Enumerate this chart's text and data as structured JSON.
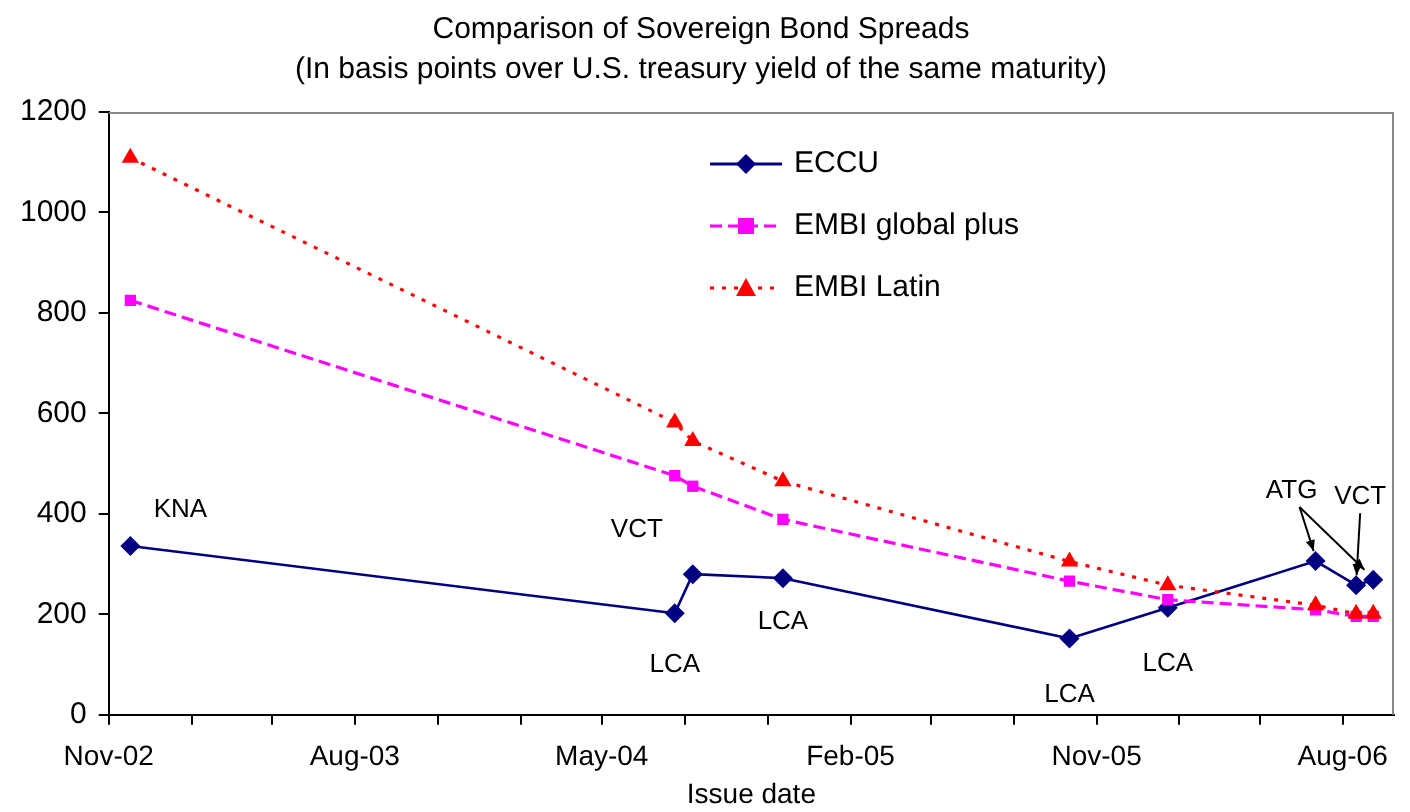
{
  "chart_data": {
    "type": "line",
    "title": "Comparison of Sovereign Bond Spreads",
    "subtitle": "(In basis points over U.S. treasury yield of the same maturity)",
    "xlabel": "Issue date",
    "x": [
      "2002-11-25",
      "2004-07-21",
      "2004-08-10",
      "2004-11-18",
      "2005-10-02",
      "2006-01-19",
      "2006-07-02",
      "2006-08-16",
      "2006-09-04"
    ],
    "series": [
      {
        "name": "ECCU",
        "color": "#000080",
        "marker": "diamond",
        "line_style": "solid",
        "values": [
          336,
          202,
          280,
          272,
          152,
          213,
          306,
          258,
          269
        ]
      },
      {
        "name": "EMBI global plus",
        "color": "#ff00ff",
        "marker": "square",
        "line_style": "dashed",
        "values": [
          825,
          476,
          455,
          389,
          266,
          229,
          209,
          196,
          196
        ]
      },
      {
        "name": "EMBI Latin",
        "color": "#ff0000",
        "marker": "triangle",
        "line_style": "dotted",
        "values": [
          1109,
          582,
          545,
          465,
          305,
          258,
          218,
          201,
          201
        ]
      }
    ],
    "xlim": [
      "2002-11-01",
      "2006-09-27"
    ],
    "xticks": [
      {
        "value": "2002-11-01",
        "label": "Nov-02"
      },
      {
        "value": "2003-02-01",
        "label": null
      },
      {
        "value": "2003-05-01",
        "label": null
      },
      {
        "value": "2003-08-01",
        "label": "Aug-03"
      },
      {
        "value": "2003-11-01",
        "label": null
      },
      {
        "value": "2004-02-01",
        "label": null
      },
      {
        "value": "2004-05-01",
        "label": "May-04"
      },
      {
        "value": "2004-08-01",
        "label": null
      },
      {
        "value": "2004-11-01",
        "label": null
      },
      {
        "value": "2005-02-01",
        "label": "Feb-05"
      },
      {
        "value": "2005-05-01",
        "label": null
      },
      {
        "value": "2005-08-01",
        "label": null
      },
      {
        "value": "2005-11-01",
        "label": "Nov-05"
      },
      {
        "value": "2006-02-01",
        "label": null
      },
      {
        "value": "2006-05-01",
        "label": null
      },
      {
        "value": "2006-08-01",
        "label": "Aug-06"
      }
    ],
    "ylim": [
      0,
      1200
    ],
    "yticks": [
      0,
      200,
      400,
      600,
      800,
      1000,
      1200
    ],
    "grid": false,
    "legend": "top right",
    "annotations": [
      {
        "text": "KNA",
        "x": "2002-11-25",
        "y": 336
      },
      {
        "text": "LCA",
        "x": "2004-07-21",
        "y": 202
      },
      {
        "text": "VCT",
        "x": "2004-08-10",
        "y": 280
      },
      {
        "text": "LCA",
        "x": "2004-11-18",
        "y": 272
      },
      {
        "text": "LCA",
        "x": "2005-10-02",
        "y": 152
      },
      {
        "text": "LCA",
        "x": "2006-01-19",
        "y": 213
      },
      {
        "text": "ATG",
        "x": "2006-07-02",
        "y": 306
      },
      {
        "text": "VCT",
        "x": "2006-08-16",
        "y": 258
      }
    ]
  }
}
